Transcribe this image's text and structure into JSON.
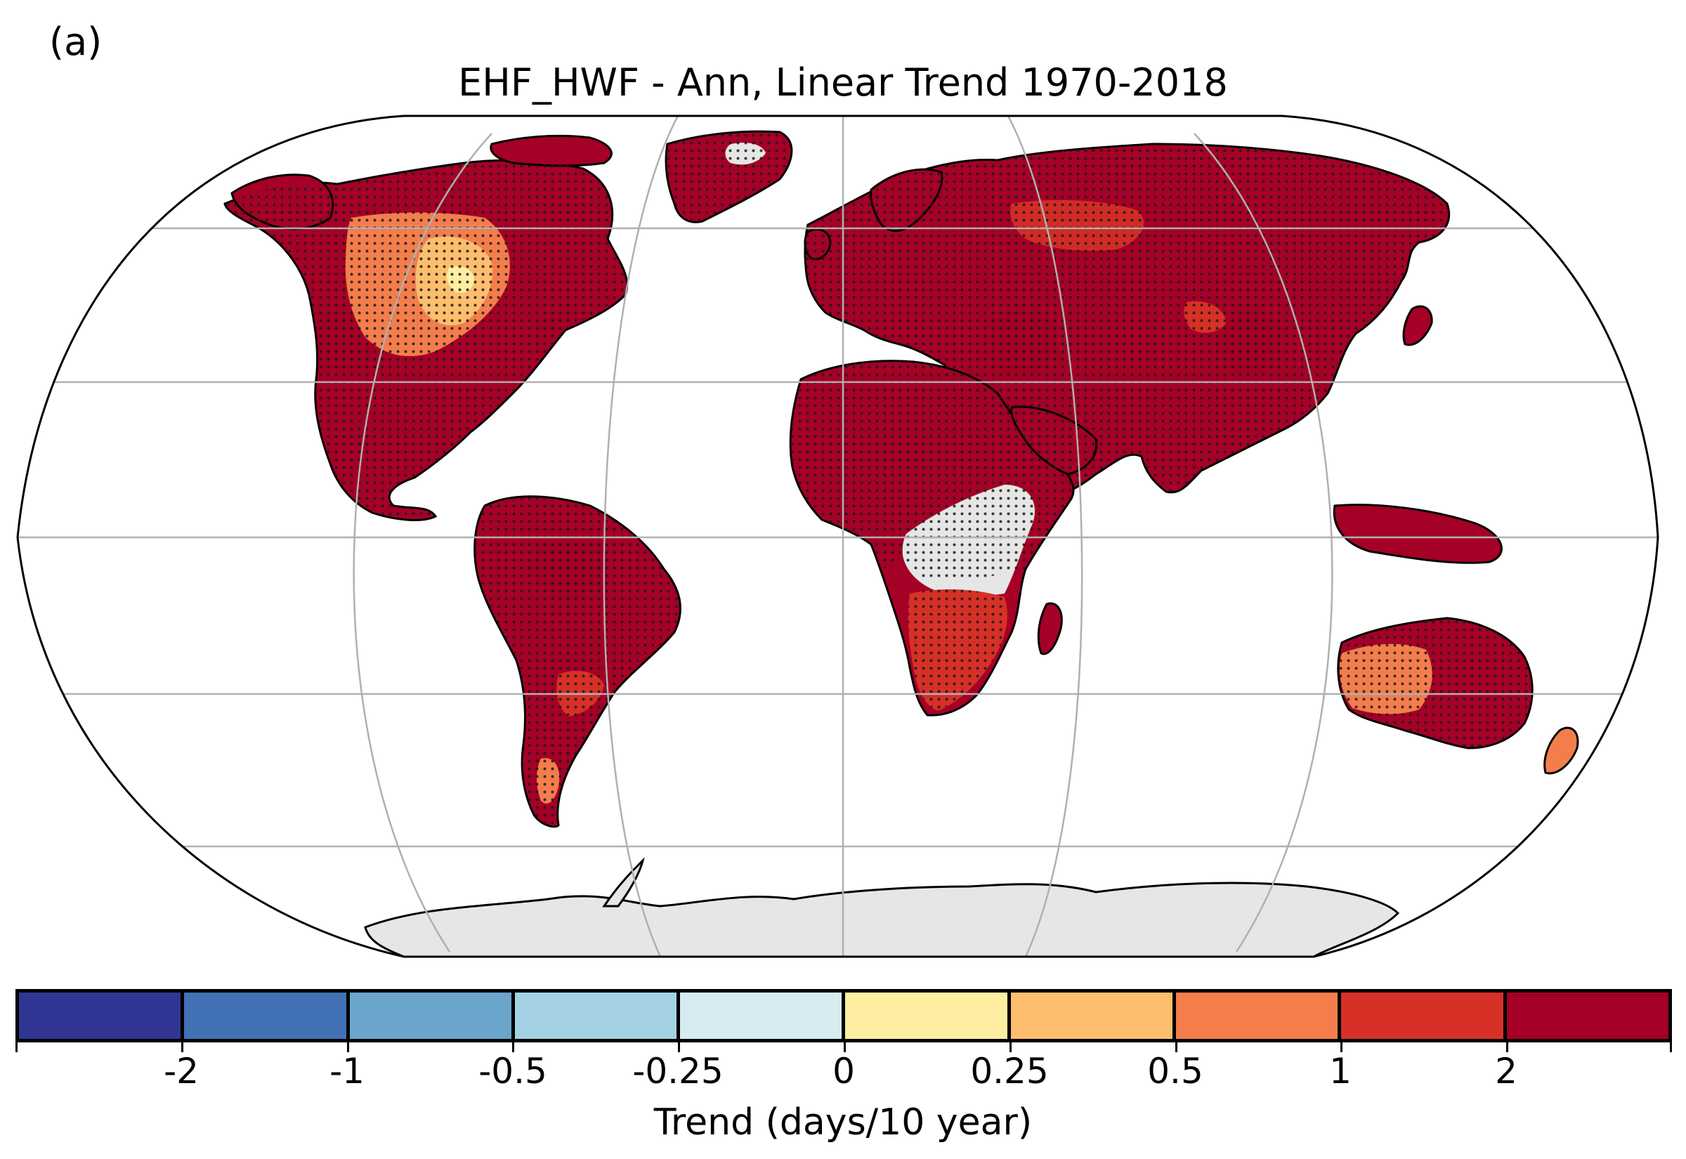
{
  "panel_label": "(a)",
  "title": "EHF_HWF - Ann, Linear Trend 1970-2018",
  "colorbar": {
    "label": "Trend (days/10 year)",
    "tick_labels": [
      "-2",
      "-1",
      "-0.5",
      "-0.25",
      "0",
      "0.25",
      "0.5",
      "1",
      "2"
    ],
    "colors": [
      "#313695",
      "#4171b4",
      "#6ca5cc",
      "#a4d1e4",
      "#d7ecf1",
      "#fdeea2",
      "#fdbe6e",
      "#f47d4c",
      "#d73027",
      "#a50026"
    ]
  },
  "map": {
    "projection": "Robinson",
    "land_no_data_color": "#e6e6e6",
    "gridline_color": "#b0b0b0"
  }
}
